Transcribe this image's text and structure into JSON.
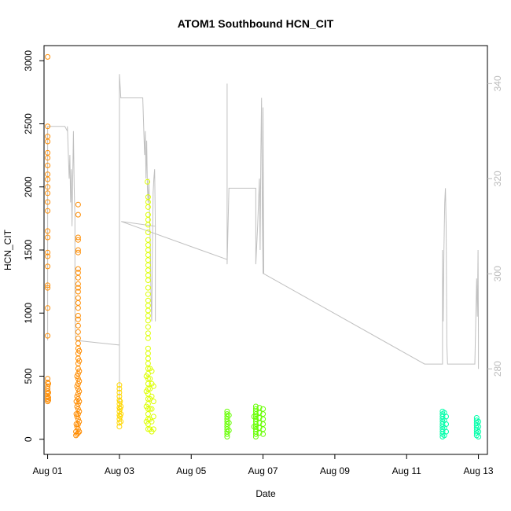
{
  "chart_data": {
    "type": "scatter",
    "title": "ATOM1 Southbound HCN_CIT",
    "xlabel": "Date",
    "ylabel": "HCN_CIT",
    "xlim": [
      -0.1,
      12.25
    ],
    "ylim": [
      -120,
      3120
    ],
    "ylim_right": [
      262,
      348
    ],
    "x_ticks": [
      {
        "value": 0,
        "label": "Aug 01"
      },
      {
        "value": 2,
        "label": "Aug 03"
      },
      {
        "value": 4,
        "label": "Aug 05"
      },
      {
        "value": 6,
        "label": "Aug 07"
      },
      {
        "value": 8,
        "label": "Aug 09"
      },
      {
        "value": 10,
        "label": "Aug 11"
      },
      {
        "value": 12,
        "label": "Aug 13"
      }
    ],
    "y_ticks": [
      0,
      500,
      1000,
      1500,
      2000,
      2500,
      3000
    ],
    "y_ticks_right": [
      280,
      300,
      320,
      340
    ],
    "grid": false,
    "series": [
      {
        "color": "#FF8C00",
        "points": [
          [
            0.0,
            3030
          ],
          [
            0.0,
            2480
          ],
          [
            0.0,
            2400
          ],
          [
            0.0,
            2360
          ],
          [
            0.0,
            2270
          ],
          [
            0.0,
            2230
          ],
          [
            0.0,
            2170
          ],
          [
            0.0,
            2100
          ],
          [
            0.0,
            2060
          ],
          [
            0.0,
            2000
          ],
          [
            0.0,
            1950
          ],
          [
            0.0,
            1880
          ],
          [
            0.0,
            1810
          ],
          [
            0.0,
            1650
          ],
          [
            0.0,
            1600
          ],
          [
            0.0,
            1480
          ],
          [
            0.0,
            1450
          ],
          [
            0.0,
            1370
          ],
          [
            0.0,
            1220
          ],
          [
            0.0,
            1200
          ],
          [
            0.0,
            1040
          ],
          [
            0.0,
            820
          ],
          [
            0.0,
            480
          ],
          [
            0.0,
            450
          ],
          [
            0.0,
            420
          ],
          [
            0.0,
            400
          ],
          [
            0.0,
            380
          ],
          [
            0.0,
            360
          ],
          [
            0.0,
            340
          ],
          [
            0.0,
            320
          ],
          [
            0.0,
            300
          ],
          [
            0.02,
            440
          ],
          [
            0.02,
            370
          ],
          [
            0.02,
            330
          ],
          [
            0.02,
            310
          ],
          [
            0.85,
            1860
          ],
          [
            0.85,
            1780
          ],
          [
            0.85,
            1600
          ],
          [
            0.85,
            1580
          ],
          [
            0.85,
            1500
          ],
          [
            0.85,
            1480
          ],
          [
            0.85,
            1350
          ],
          [
            0.85,
            1320
          ],
          [
            0.85,
            1280
          ],
          [
            0.85,
            1230
          ],
          [
            0.85,
            1200
          ],
          [
            0.85,
            1170
          ],
          [
            0.85,
            1120
          ],
          [
            0.85,
            1080
          ],
          [
            0.85,
            1040
          ],
          [
            0.85,
            980
          ],
          [
            0.85,
            950
          ],
          [
            0.85,
            900
          ],
          [
            0.85,
            850
          ],
          [
            0.85,
            800
          ],
          [
            0.85,
            760
          ],
          [
            0.85,
            720
          ],
          [
            0.85,
            680
          ],
          [
            0.85,
            640
          ],
          [
            0.85,
            600
          ],
          [
            0.85,
            560
          ],
          [
            0.85,
            520
          ],
          [
            0.85,
            480
          ],
          [
            0.85,
            440
          ],
          [
            0.85,
            400
          ],
          [
            0.85,
            360
          ],
          [
            0.85,
            320
          ],
          [
            0.85,
            280
          ],
          [
            0.85,
            240
          ],
          [
            0.85,
            200
          ],
          [
            0.85,
            160
          ],
          [
            0.85,
            120
          ],
          [
            0.85,
            80
          ],
          [
            0.85,
            50
          ],
          [
            0.88,
            700
          ],
          [
            0.88,
            620
          ],
          [
            0.88,
            540
          ],
          [
            0.88,
            460
          ],
          [
            0.88,
            380
          ],
          [
            0.88,
            300
          ],
          [
            0.88,
            220
          ],
          [
            0.88,
            140
          ],
          [
            0.88,
            60
          ],
          [
            0.82,
            500
          ],
          [
            0.82,
            420
          ],
          [
            0.82,
            340
          ],
          [
            0.82,
            260
          ],
          [
            0.82,
            180
          ],
          [
            0.82,
            100
          ],
          [
            0.82,
            40
          ],
          [
            0.8,
            300
          ],
          [
            0.8,
            200
          ],
          [
            0.8,
            120
          ],
          [
            0.79,
            60
          ],
          [
            0.79,
            30
          ]
        ]
      },
      {
        "color": "#FFD700",
        "points": [
          [
            2.0,
            430
          ],
          [
            2.0,
            400
          ],
          [
            2.0,
            370
          ],
          [
            2.0,
            340
          ],
          [
            2.0,
            310
          ],
          [
            2.0,
            280
          ],
          [
            2.0,
            250
          ],
          [
            2.0,
            220
          ],
          [
            2.0,
            190
          ],
          [
            2.0,
            160
          ],
          [
            2.0,
            130
          ],
          [
            2.0,
            100
          ],
          [
            2.02,
            300
          ],
          [
            2.02,
            240
          ],
          [
            2.02,
            180
          ],
          [
            2.04,
            260
          ],
          [
            2.04,
            200
          ],
          [
            2.04,
            140
          ]
        ]
      },
      {
        "color": "#DDFF00",
        "points": [
          [
            2.78,
            2040
          ],
          [
            2.8,
            1920
          ],
          [
            2.8,
            1880
          ],
          [
            2.8,
            1840
          ],
          [
            2.8,
            1780
          ],
          [
            2.8,
            1740
          ],
          [
            2.8,
            1700
          ],
          [
            2.8,
            1640
          ],
          [
            2.8,
            1580
          ],
          [
            2.8,
            1540
          ],
          [
            2.8,
            1500
          ],
          [
            2.8,
            1460
          ],
          [
            2.8,
            1420
          ],
          [
            2.8,
            1380
          ],
          [
            2.8,
            1340
          ],
          [
            2.8,
            1300
          ],
          [
            2.8,
            1260
          ],
          [
            2.8,
            1200
          ],
          [
            2.8,
            1150
          ],
          [
            2.8,
            1100
          ],
          [
            2.8,
            1060
          ],
          [
            2.8,
            1020
          ],
          [
            2.8,
            980
          ],
          [
            2.8,
            940
          ],
          [
            2.8,
            890
          ],
          [
            2.8,
            840
          ],
          [
            2.8,
            800
          ],
          [
            2.8,
            720
          ],
          [
            2.8,
            680
          ],
          [
            2.8,
            640
          ],
          [
            2.8,
            600
          ],
          [
            2.8,
            560
          ],
          [
            2.8,
            520
          ],
          [
            2.8,
            480
          ],
          [
            2.8,
            440
          ],
          [
            2.8,
            400
          ],
          [
            2.8,
            360
          ],
          [
            2.8,
            320
          ],
          [
            2.8,
            280
          ],
          [
            2.8,
            240
          ],
          [
            2.8,
            200
          ],
          [
            2.8,
            160
          ],
          [
            2.8,
            120
          ],
          [
            2.8,
            80
          ],
          [
            2.85,
            560
          ],
          [
            2.85,
            480
          ],
          [
            2.85,
            400
          ],
          [
            2.85,
            320
          ],
          [
            2.85,
            240
          ],
          [
            2.85,
            160
          ],
          [
            2.85,
            80
          ],
          [
            2.9,
            540
          ],
          [
            2.9,
            440
          ],
          [
            2.9,
            340
          ],
          [
            2.9,
            240
          ],
          [
            2.9,
            140
          ],
          [
            2.9,
            60
          ],
          [
            2.95,
            420
          ],
          [
            2.95,
            300
          ],
          [
            2.95,
            180
          ],
          [
            2.95,
            80
          ],
          [
            2.75,
            500
          ],
          [
            2.75,
            380
          ],
          [
            2.75,
            260
          ],
          [
            2.75,
            140
          ]
        ]
      },
      {
        "color": "#66FF00",
        "points": [
          [
            5.0,
            220
          ],
          [
            5.0,
            200
          ],
          [
            5.0,
            180
          ],
          [
            5.0,
            160
          ],
          [
            5.0,
            140
          ],
          [
            5.0,
            120
          ],
          [
            5.0,
            100
          ],
          [
            5.0,
            80
          ],
          [
            5.0,
            60
          ],
          [
            5.0,
            40
          ],
          [
            5.0,
            20
          ],
          [
            5.05,
            190
          ],
          [
            5.05,
            130
          ],
          [
            5.05,
            70
          ],
          [
            5.8,
            260
          ],
          [
            5.8,
            240
          ],
          [
            5.8,
            220
          ],
          [
            5.8,
            200
          ],
          [
            5.8,
            180
          ],
          [
            5.8,
            160
          ],
          [
            5.8,
            140
          ],
          [
            5.8,
            120
          ],
          [
            5.8,
            100
          ],
          [
            5.8,
            80
          ],
          [
            5.8,
            60
          ],
          [
            5.8,
            40
          ],
          [
            5.8,
            20
          ],
          [
            5.9,
            250
          ],
          [
            5.9,
            210
          ],
          [
            5.9,
            170
          ],
          [
            5.9,
            130
          ],
          [
            5.9,
            90
          ],
          [
            5.9,
            50
          ],
          [
            6.0,
            240
          ],
          [
            6.0,
            200
          ],
          [
            6.0,
            160
          ],
          [
            6.0,
            120
          ],
          [
            6.0,
            80
          ],
          [
            6.0,
            40
          ],
          [
            5.75,
            180
          ],
          [
            5.75,
            100
          ]
        ]
      },
      {
        "color": "#00FFAA",
        "points": [
          [
            11.0,
            220
          ],
          [
            11.0,
            200
          ],
          [
            11.0,
            180
          ],
          [
            11.0,
            160
          ],
          [
            11.0,
            140
          ],
          [
            11.0,
            120
          ],
          [
            11.0,
            100
          ],
          [
            11.0,
            80
          ],
          [
            11.0,
            60
          ],
          [
            11.0,
            40
          ],
          [
            11.0,
            20
          ],
          [
            11.05,
            210
          ],
          [
            11.05,
            150
          ],
          [
            11.05,
            90
          ],
          [
            11.05,
            30
          ],
          [
            11.1,
            180
          ],
          [
            11.1,
            120
          ],
          [
            11.1,
            60
          ],
          [
            11.95,
            170
          ],
          [
            11.95,
            150
          ],
          [
            11.95,
            130
          ],
          [
            11.95,
            110
          ],
          [
            11.95,
            90
          ],
          [
            11.95,
            70
          ],
          [
            11.95,
            50
          ],
          [
            11.95,
            30
          ],
          [
            12.0,
            140
          ],
          [
            12.0,
            100
          ],
          [
            12.0,
            60
          ],
          [
            12.0,
            20
          ]
        ]
      }
    ],
    "right_axis_line": {
      "color": "#c0c0c0",
      "points": [
        [
          0.0,
          286
        ],
        [
          0.0,
          331
        ],
        [
          0.48,
          331
        ],
        [
          0.48,
          331
        ],
        [
          0.55,
          330
        ],
        [
          0.55,
          331
        ],
        [
          0.6,
          320
        ],
        [
          0.62,
          325
        ],
        [
          0.64,
          315
        ],
        [
          0.66,
          322
        ],
        [
          0.68,
          310
        ],
        [
          0.7,
          320
        ],
        [
          0.72,
          330
        ],
        [
          0.74,
          318
        ],
        [
          0.76,
          312
        ],
        [
          0.76,
          292
        ],
        [
          0.78,
          286
        ],
        [
          2.0,
          285
        ],
        [
          2.0,
          342
        ],
        [
          2.0,
          270
        ],
        [
          2.0,
          342
        ],
        [
          2.04,
          337
        ],
        [
          2.65,
          337
        ],
        [
          2.7,
          325
        ],
        [
          2.72,
          330
        ],
        [
          2.74,
          320
        ],
        [
          2.76,
          328
        ],
        [
          2.78,
          318
        ],
        [
          2.8,
          315
        ],
        [
          2.82,
          320
        ],
        [
          2.84,
          312
        ],
        [
          2.86,
          306
        ],
        [
          2.88,
          295
        ],
        [
          2.9,
          290
        ],
        [
          2.92,
          305
        ],
        [
          2.94,
          317
        ],
        [
          2.96,
          320
        ],
        [
          2.98,
          322
        ],
        [
          3.0,
          310
        ],
        [
          3.0,
          290
        ],
        [
          3.0,
          310
        ],
        [
          2.05,
          311
        ],
        [
          5.0,
          303
        ],
        [
          5.0,
          340
        ],
        [
          5.0,
          302
        ],
        [
          5.05,
          318
        ],
        [
          5.8,
          318
        ],
        [
          5.8,
          302
        ],
        [
          5.85,
          310
        ],
        [
          5.9,
          320
        ],
        [
          5.92,
          305
        ],
        [
          5.94,
          325
        ],
        [
          5.96,
          337
        ],
        [
          5.98,
          312
        ],
        [
          6.0,
          300
        ],
        [
          6.0,
          305
        ],
        [
          6.0,
          335
        ],
        [
          6.02,
          300
        ],
        [
          6.02,
          300
        ],
        [
          10.5,
          281
        ],
        [
          11.0,
          281
        ],
        [
          11.0,
          305
        ],
        [
          11.02,
          290
        ],
        [
          11.04,
          305
        ],
        [
          11.06,
          315
        ],
        [
          11.08,
          318
        ],
        [
          11.1,
          310
        ],
        [
          11.12,
          285
        ],
        [
          11.14,
          281
        ],
        [
          11.9,
          281
        ],
        [
          11.95,
          299
        ],
        [
          11.97,
          291
        ],
        [
          11.99,
          305
        ],
        [
          12.0,
          286
        ],
        [
          12.0,
          280
        ]
      ]
    }
  }
}
